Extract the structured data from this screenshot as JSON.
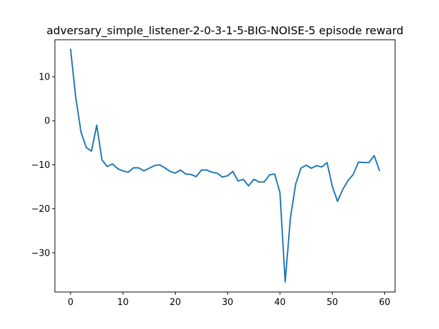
{
  "chart_data": {
    "type": "line",
    "title": "adversary_simple_listener-2-0-3-1-5-BIG-NOISE-5 episode reward",
    "xlabel": "",
    "ylabel": "",
    "xlim": [
      -3,
      62
    ],
    "ylim": [
      -38.9,
      18.4
    ],
    "x_ticks": [
      0,
      10,
      20,
      30,
      40,
      50,
      60
    ],
    "y_ticks": [
      10,
      0,
      -10,
      -20,
      -30
    ],
    "x_tick_labels": [
      "0",
      "10",
      "20",
      "30",
      "40",
      "50",
      "60"
    ],
    "y_tick_labels": [
      "10",
      "0",
      "−10",
      "−20",
      "−30"
    ],
    "grid": false,
    "series": [
      {
        "color": "#1f77b4",
        "x": [
          0,
          1,
          2,
          3,
          4,
          5,
          6,
          7,
          8,
          9,
          10,
          11,
          12,
          13,
          14,
          15,
          16,
          17,
          18,
          19,
          20,
          21,
          22,
          23,
          24,
          25,
          26,
          27,
          28,
          29,
          30,
          31,
          32,
          33,
          34,
          35,
          36,
          37,
          38,
          39,
          40,
          41,
          42,
          43,
          44,
          45,
          46,
          47,
          48,
          49,
          50,
          51,
          52,
          53,
          54,
          55,
          56,
          57,
          58,
          59
        ],
        "y": [
          16.2,
          5.2,
          -2.6,
          -6.1,
          -6.9,
          -1.0,
          -8.9,
          -10.4,
          -9.8,
          -10.9,
          -11.4,
          -11.7,
          -10.7,
          -10.7,
          -11.4,
          -10.8,
          -10.2,
          -10.0,
          -10.7,
          -11.5,
          -11.9,
          -11.2,
          -12.1,
          -12.2,
          -12.7,
          -11.2,
          -11.2,
          -11.7,
          -11.9,
          -12.8,
          -12.5,
          -11.5,
          -13.7,
          -13.3,
          -14.8,
          -13.3,
          -13.9,
          -13.9,
          -12.3,
          -12.1,
          -16.3,
          -36.6,
          -22.1,
          -14.4,
          -10.8,
          -10.1,
          -10.8,
          -10.2,
          -10.5,
          -9.5,
          -14.9,
          -18.3,
          -15.6,
          -13.6,
          -12.2,
          -9.4,
          -9.5,
          -9.5,
          -7.9,
          -11.3
        ]
      }
    ]
  }
}
